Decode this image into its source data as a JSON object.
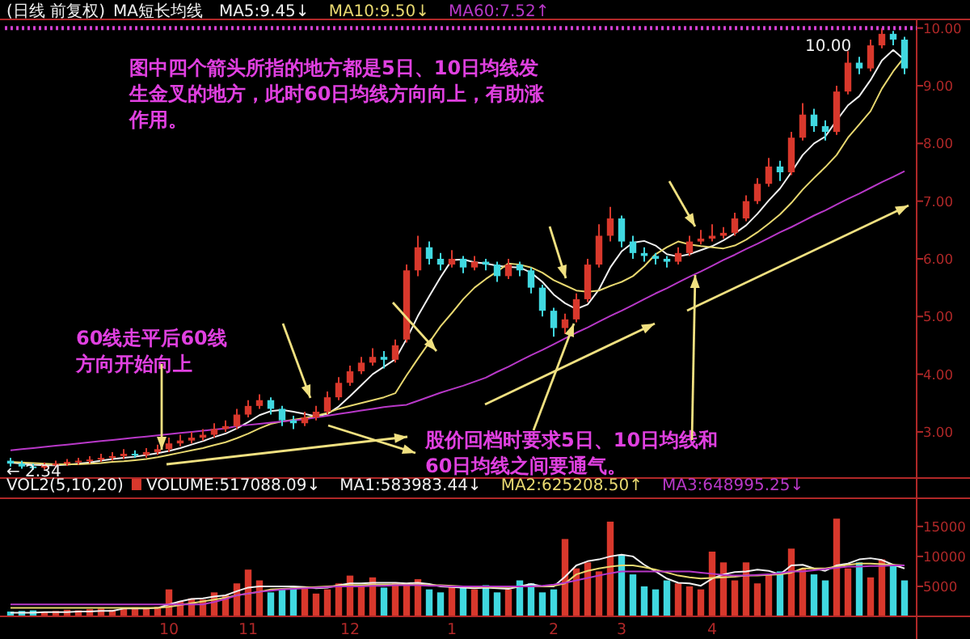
{
  "chart_data": [
    {
      "type": "candlestick",
      "title": "(日线 前复权)",
      "subtitle": "MA短长均线",
      "legend": "top left",
      "tick_labels": "y",
      "categories": [
        null,
        null,
        null,
        null,
        null,
        null,
        null,
        null,
        null,
        null,
        null,
        null,
        null,
        null,
        null,
        null,
        null,
        null,
        null,
        null,
        null,
        null,
        null,
        null,
        null,
        null,
        null,
        null,
        null,
        null,
        null,
        null,
        null,
        null,
        null,
        null,
        null,
        null,
        null,
        null,
        null,
        null,
        null,
        null,
        null,
        null,
        null,
        null,
        null,
        null,
        null,
        null,
        null,
        null,
        null,
        null,
        null,
        null,
        null,
        null,
        null,
        null,
        null,
        null,
        null,
        null,
        null,
        null,
        null,
        null,
        null,
        null,
        null,
        null,
        null,
        null,
        null,
        null,
        null,
        null
      ],
      "ohlc": [
        [
          2.5,
          2.55,
          2.4,
          2.45
        ],
        [
          2.45,
          2.5,
          2.36,
          2.4
        ],
        [
          2.4,
          2.45,
          2.34,
          2.38
        ],
        [
          2.38,
          2.47,
          2.35,
          2.42
        ],
        [
          2.42,
          2.5,
          2.38,
          2.45
        ],
        [
          2.45,
          2.53,
          2.41,
          2.48
        ],
        [
          2.48,
          2.55,
          2.43,
          2.5
        ],
        [
          2.5,
          2.58,
          2.45,
          2.52
        ],
        [
          2.52,
          2.62,
          2.48,
          2.55
        ],
        [
          2.55,
          2.65,
          2.5,
          2.58
        ],
        [
          2.58,
          2.7,
          2.53,
          2.62
        ],
        [
          2.62,
          2.68,
          2.55,
          2.6
        ],
        [
          2.6,
          2.72,
          2.55,
          2.65
        ],
        [
          2.65,
          2.78,
          2.6,
          2.7
        ],
        [
          2.7,
          2.9,
          2.65,
          2.8
        ],
        [
          2.8,
          2.95,
          2.75,
          2.85
        ],
        [
          2.85,
          3.0,
          2.8,
          2.9
        ],
        [
          2.9,
          3.05,
          2.85,
          2.95
        ],
        [
          2.95,
          3.15,
          2.9,
          3.05
        ],
        [
          3.05,
          3.2,
          3.0,
          3.1
        ],
        [
          3.1,
          3.4,
          3.05,
          3.3
        ],
        [
          3.3,
          3.55,
          3.25,
          3.45
        ],
        [
          3.45,
          3.65,
          3.4,
          3.55
        ],
        [
          3.55,
          3.6,
          3.3,
          3.4
        ],
        [
          3.4,
          3.45,
          3.1,
          3.2
        ],
        [
          3.2,
          3.28,
          3.05,
          3.15
        ],
        [
          3.15,
          3.35,
          3.1,
          3.25
        ],
        [
          3.25,
          3.45,
          3.2,
          3.35
        ],
        [
          3.35,
          3.7,
          3.3,
          3.6
        ],
        [
          3.6,
          3.95,
          3.55,
          3.85
        ],
        [
          3.85,
          4.15,
          3.8,
          4.05
        ],
        [
          4.05,
          4.3,
          4.0,
          4.2
        ],
        [
          4.2,
          4.45,
          4.15,
          4.3
        ],
        [
          4.3,
          4.4,
          4.1,
          4.25
        ],
        [
          4.25,
          4.6,
          4.2,
          4.5
        ],
        [
          4.6,
          5.9,
          4.55,
          5.8
        ],
        [
          5.8,
          6.4,
          5.7,
          6.2
        ],
        [
          6.2,
          6.3,
          5.9,
          6.0
        ],
        [
          6.0,
          6.1,
          5.8,
          5.9
        ],
        [
          5.9,
          6.15,
          5.85,
          6.0
        ],
        [
          6.0,
          6.05,
          5.75,
          5.85
        ],
        [
          5.85,
          6.05,
          5.8,
          5.95
        ],
        [
          5.95,
          6.0,
          5.8,
          5.9
        ],
        [
          5.9,
          5.95,
          5.6,
          5.7
        ],
        [
          5.7,
          6.0,
          5.65,
          5.9
        ],
        [
          5.9,
          5.95,
          5.7,
          5.8
        ],
        [
          5.8,
          5.85,
          5.4,
          5.5
        ],
        [
          5.5,
          5.55,
          5.0,
          5.1
        ],
        [
          5.1,
          5.15,
          4.65,
          4.8
        ],
        [
          4.8,
          5.05,
          4.7,
          4.95
        ],
        [
          4.95,
          5.4,
          4.9,
          5.3
        ],
        [
          5.3,
          6.0,
          5.25,
          5.9
        ],
        [
          5.9,
          6.6,
          5.85,
          6.4
        ],
        [
          6.4,
          6.9,
          6.3,
          6.7
        ],
        [
          6.7,
          6.75,
          6.2,
          6.3
        ],
        [
          6.3,
          6.4,
          6.0,
          6.1
        ],
        [
          6.1,
          6.2,
          5.95,
          6.05
        ],
        [
          6.05,
          6.1,
          5.9,
          6.0
        ],
        [
          6.0,
          6.05,
          5.85,
          5.95
        ],
        [
          5.95,
          6.2,
          5.9,
          6.1
        ],
        [
          6.1,
          6.4,
          6.05,
          6.3
        ],
        [
          6.3,
          6.5,
          6.25,
          6.35
        ],
        [
          6.35,
          6.6,
          6.3,
          6.4
        ],
        [
          6.4,
          6.55,
          6.35,
          6.45
        ],
        [
          6.45,
          6.8,
          6.4,
          6.7
        ],
        [
          6.7,
          7.1,
          6.65,
          7.0
        ],
        [
          7.0,
          7.4,
          6.95,
          7.3
        ],
        [
          7.3,
          7.75,
          7.25,
          7.6
        ],
        [
          7.6,
          7.7,
          7.35,
          7.5
        ],
        [
          7.5,
          8.2,
          7.45,
          8.1
        ],
        [
          8.1,
          8.7,
          8.05,
          8.5
        ],
        [
          8.5,
          8.6,
          8.2,
          8.3
        ],
        [
          8.3,
          8.4,
          8.05,
          8.2
        ],
        [
          8.2,
          9.0,
          8.15,
          8.9
        ],
        [
          8.9,
          9.6,
          8.85,
          9.4
        ],
        [
          9.4,
          9.5,
          9.2,
          9.3
        ],
        [
          9.3,
          9.8,
          9.25,
          9.7
        ],
        [
          9.7,
          10.0,
          9.65,
          9.9
        ],
        [
          9.9,
          9.95,
          9.7,
          9.8
        ],
        [
          9.8,
          9.85,
          9.2,
          9.3
        ]
      ],
      "series": [
        {
          "name": "MA5:9.45↓",
          "type": "line",
          "color": "#f0f0f0",
          "values": [
            2.47,
            2.45,
            2.43,
            2.42,
            2.42,
            2.43,
            2.45,
            2.47,
            2.5,
            2.53,
            2.55,
            2.57,
            2.6,
            2.63,
            2.67,
            2.72,
            2.78,
            2.84,
            2.91,
            2.97,
            3.06,
            3.17,
            3.29,
            3.36,
            3.38,
            3.35,
            3.31,
            3.27,
            3.31,
            3.44,
            3.62,
            3.81,
            4.0,
            4.13,
            4.26,
            4.61,
            5.01,
            5.35,
            5.68,
            5.98,
            5.99,
            5.94,
            5.92,
            5.88,
            5.86,
            5.85,
            5.76,
            5.6,
            5.38,
            5.23,
            5.13,
            5.21,
            5.47,
            5.85,
            6.13,
            6.28,
            6.31,
            6.23,
            6.08,
            6.04,
            6.08,
            6.15,
            6.22,
            6.32,
            6.44,
            6.58,
            6.78,
            7.01,
            7.22,
            7.5,
            7.8,
            8.0,
            8.12,
            8.4,
            8.66,
            8.82,
            9.1,
            9.44,
            9.62,
            9.45
          ]
        },
        {
          "name": "MA10:9.50↓",
          "type": "line",
          "color": "#e8d870",
          "values": [
            2.48,
            2.47,
            2.46,
            2.45,
            2.44,
            2.44,
            2.44,
            2.45,
            2.46,
            2.48,
            2.49,
            2.51,
            2.53,
            2.56,
            2.6,
            2.64,
            2.68,
            2.72,
            2.77,
            2.82,
            2.89,
            2.97,
            3.06,
            3.14,
            3.18,
            3.21,
            3.24,
            3.28,
            3.33,
            3.4,
            3.45,
            3.5,
            3.55,
            3.6,
            3.67,
            3.98,
            4.27,
            4.55,
            4.83,
            5.06,
            5.3,
            5.5,
            5.65,
            5.78,
            5.92,
            5.9,
            5.85,
            5.76,
            5.63,
            5.54,
            5.45,
            5.43,
            5.45,
            5.53,
            5.6,
            5.7,
            5.87,
            6.08,
            6.2,
            6.3,
            6.25,
            6.22,
            6.2,
            6.18,
            6.23,
            6.33,
            6.46,
            6.61,
            6.77,
            6.97,
            7.2,
            7.4,
            7.59,
            7.8,
            8.1,
            8.33,
            8.56,
            8.95,
            9.25,
            9.5
          ]
        },
        {
          "name": "MA60:7.52↑",
          "type": "line",
          "color": "#b838c8",
          "values": [
            2.68,
            2.7,
            2.72,
            2.74,
            2.76,
            2.78,
            2.8,
            2.82,
            2.84,
            2.86,
            2.88,
            2.9,
            2.92,
            2.94,
            2.96,
            2.98,
            3.0,
            3.02,
            3.04,
            3.06,
            3.1,
            3.12,
            3.14,
            3.16,
            3.18,
            3.2,
            3.22,
            3.25,
            3.28,
            3.31,
            3.34,
            3.37,
            3.4,
            3.43,
            3.45,
            3.47,
            3.54,
            3.61,
            3.68,
            3.74,
            3.8,
            3.87,
            3.94,
            4.04,
            4.13,
            4.23,
            4.33,
            4.42,
            4.52,
            4.62,
            4.72,
            4.81,
            4.91,
            5.01,
            5.1,
            5.2,
            5.3,
            5.4,
            5.49,
            5.59,
            5.69,
            5.78,
            5.88,
            5.98,
            6.07,
            6.17,
            6.26,
            6.36,
            6.46,
            6.55,
            6.65,
            6.75,
            6.84,
            6.94,
            7.04,
            7.13,
            7.23,
            7.33,
            7.42,
            7.52
          ]
        }
      ],
      "ylim": [
        2.2,
        10.15
      ],
      "yticks": [
        {
          "value": 3,
          "label": "3.00"
        },
        {
          "value": 4,
          "label": "4.00"
        },
        {
          "value": 5,
          "label": "5.00"
        },
        {
          "value": 6,
          "label": "6.00"
        },
        {
          "value": 7,
          "label": "7.00"
        },
        {
          "value": 8,
          "label": "8.00"
        },
        {
          "value": 9,
          "label": "9.00"
        },
        {
          "value": 10,
          "label": "10.00"
        }
      ],
      "ref_lines": [
        {
          "axis": "y",
          "value": 10,
          "color": "#d040d0",
          "line_style": "dotted"
        }
      ],
      "annotations": [
        {
          "text": "图中四个箭头所指的地方都是5日、10日均线发生金叉的地方，此时60日均线方向向上，有助涨作用。"
        },
        {
          "text": "60线走平后60线方向开始向上"
        },
        {
          "text": "股价回档时要求5日、10日均线和60日均线之间要通气。"
        },
        {
          "text": "← 2.34",
          "y": 2.34
        },
        {
          "text": "10.00",
          "y": 10
        }
      ]
    },
    {
      "type": "bar",
      "title": "VOL2(5,10,20)",
      "legend": "top left",
      "categories": [
        null,
        null,
        null,
        null,
        null,
        null,
        null,
        null,
        null,
        null,
        null,
        null,
        null,
        null,
        "10",
        null,
        null,
        null,
        null,
        null,
        null,
        "11",
        null,
        null,
        null,
        null,
        null,
        null,
        null,
        null,
        "12",
        null,
        null,
        null,
        null,
        null,
        null,
        null,
        null,
        "1",
        null,
        null,
        null,
        null,
        null,
        null,
        null,
        null,
        "2",
        null,
        null,
        null,
        null,
        null,
        "3",
        null,
        null,
        null,
        null,
        null,
        null,
        null,
        "4",
        null,
        null,
        null,
        null,
        null,
        null,
        null,
        null,
        null,
        null,
        null,
        null,
        null,
        null,
        null,
        null,
        null
      ],
      "series": [
        {
          "name": "VOLUME:517088.09↓",
          "type": "bar",
          "color": "#d8382c",
          "values": [
            800,
            900,
            1000,
            700,
            900,
            1100,
            1000,
            1200,
            1300,
            1100,
            1400,
            1500,
            1300,
            1600,
            4500,
            2500,
            3000,
            2800,
            4000,
            3500,
            5500,
            7800,
            6000,
            4000,
            4500,
            4800,
            5000,
            3800,
            4500,
            5500,
            6800,
            5000,
            6500,
            4800,
            5500,
            5500,
            6200,
            4500,
            4000,
            5000,
            4800,
            4500,
            5200,
            4000,
            4500,
            6000,
            5500,
            4000,
            4500,
            12900,
            8000,
            9000,
            7500,
            15800,
            10300,
            7000,
            5000,
            4500,
            6000,
            5500,
            5000,
            4500,
            10800,
            9000,
            6000,
            9000,
            5500,
            7000,
            7500,
            11300,
            8000,
            7000,
            6000,
            16300,
            8000,
            9000,
            6500,
            9500,
            8500,
            6000
          ],
          "colors": [
            "#40d8e0",
            "#40d8e0",
            "#40d8e0",
            "#d8382c",
            "#d8382c",
            "#d8382c",
            "#d8382c",
            "#d8382c",
            "#d8382c",
            "#d8382c",
            "#d8382c",
            "#d8382c",
            "#d8382c",
            "#d8382c",
            "#d8382c",
            "#d8382c",
            "#d8382c",
            "#d8382c",
            "#d8382c",
            "#d8382c",
            "#d8382c",
            "#d8382c",
            "#d8382c",
            "#40d8e0",
            "#40d8e0",
            "#40d8e0",
            "#d8382c",
            "#d8382c",
            "#d8382c",
            "#d8382c",
            "#d8382c",
            "#d8382c",
            "#d8382c",
            "#40d8e0",
            "#d8382c",
            "#d8382c",
            "#d8382c",
            "#40d8e0",
            "#40d8e0",
            "#d8382c",
            "#40d8e0",
            "#d8382c",
            "#40d8e0",
            "#40d8e0",
            "#d8382c",
            "#40d8e0",
            "#40d8e0",
            "#40d8e0",
            "#40d8e0",
            "#d8382c",
            "#d8382c",
            "#d8382c",
            "#d8382c",
            "#d8382c",
            "#40d8e0",
            "#40d8e0",
            "#40d8e0",
            "#40d8e0",
            "#40d8e0",
            "#d8382c",
            "#d8382c",
            "#d8382c",
            "#d8382c",
            "#d8382c",
            "#d8382c",
            "#d8382c",
            "#d8382c",
            "#d8382c",
            "#40d8e0",
            "#d8382c",
            "#d8382c",
            "#40d8e0",
            "#40d8e0",
            "#d8382c",
            "#d8382c",
            "#40d8e0",
            "#d8382c",
            "#d8382c",
            "#40d8e0",
            "#40d8e0"
          ]
        },
        {
          "name": "MA1:583983.44↓",
          "type": "line",
          "color": "#f0f0f0",
          "values": [
            600,
            600,
            600,
            700,
            700,
            700,
            800,
            800,
            900,
            900,
            1300,
            1300,
            1300,
            1400,
            2000,
            2500,
            2900,
            3000,
            3300,
            3500,
            4200,
            4800,
            5000,
            5000,
            5000,
            5000,
            4900,
            4700,
            4800,
            5200,
            5500,
            5500,
            5600,
            5600,
            5600,
            5500,
            5600,
            5400,
            5000,
            4900,
            4800,
            4700,
            4800,
            4700,
            4600,
            5000,
            5400,
            5000,
            5000,
            6600,
            8500,
            9200,
            9500,
            10000,
            10300,
            10000,
            8600,
            7500,
            6300,
            5600,
            5500,
            5100,
            6300,
            7000,
            7400,
            7500,
            7800,
            7600,
            7000,
            8500,
            8600,
            8000,
            7600,
            8500,
            8800,
            9500,
            9700,
            9400,
            8600,
            8000
          ]
        },
        {
          "name": "MA2:625208.50↑",
          "type": "line",
          "color": "#e8d870",
          "values": [
            1400,
            1400,
            1400,
            1400,
            1400,
            1400,
            1400,
            1400,
            1400,
            1400,
            1400,
            1400,
            1400,
            1400,
            1600,
            1900,
            2200,
            2500,
            2800,
            3100,
            3500,
            3800,
            4100,
            4500,
            4600,
            4700,
            4800,
            4900,
            5000,
            5100,
            5200,
            5200,
            5300,
            5300,
            5300,
            5300,
            5300,
            5200,
            5200,
            5100,
            5000,
            4900,
            4900,
            4900,
            4900,
            5000,
            5000,
            5000,
            5100,
            5500,
            7000,
            7600,
            8000,
            8300,
            8500,
            8500,
            8200,
            7800,
            7300,
            6800,
            6500,
            6300,
            6400,
            6500,
            6600,
            6800,
            6800,
            6900,
            7000,
            7300,
            8000,
            8000,
            8000,
            8300,
            8600,
            8800,
            8800,
            8700,
            8600,
            8500
          ]
        },
        {
          "name": "MA3:648995.25↓",
          "type": "line",
          "color": "#b838c8",
          "values": [
            2000,
            2000,
            2000,
            2000,
            2000,
            2000,
            2000,
            2000,
            2000,
            2000,
            2000,
            2000,
            2000,
            2000,
            2000,
            2000,
            2000,
            2000,
            2400,
            2900,
            3500,
            3800,
            4100,
            4300,
            4500,
            4600,
            4700,
            4800,
            4900,
            5000,
            5000,
            5000,
            5100,
            5100,
            5200,
            5200,
            5200,
            5100,
            5100,
            5000,
            5000,
            5000,
            5000,
            5000,
            5000,
            5000,
            5000,
            5100,
            5300,
            5600,
            6000,
            6400,
            6800,
            7200,
            7500,
            7500,
            7500,
            7500,
            7500,
            7500,
            7500,
            7300,
            7100,
            6900,
            6800,
            6800,
            6900,
            7000,
            7200,
            7500,
            7500,
            7700,
            7900,
            8100,
            8300,
            8300,
            8400,
            8400,
            8500,
            8500
          ]
        }
      ],
      "ylim": [
        0,
        19700
      ],
      "yticks": [
        5000,
        10000,
        15000
      ]
    }
  ]
}
